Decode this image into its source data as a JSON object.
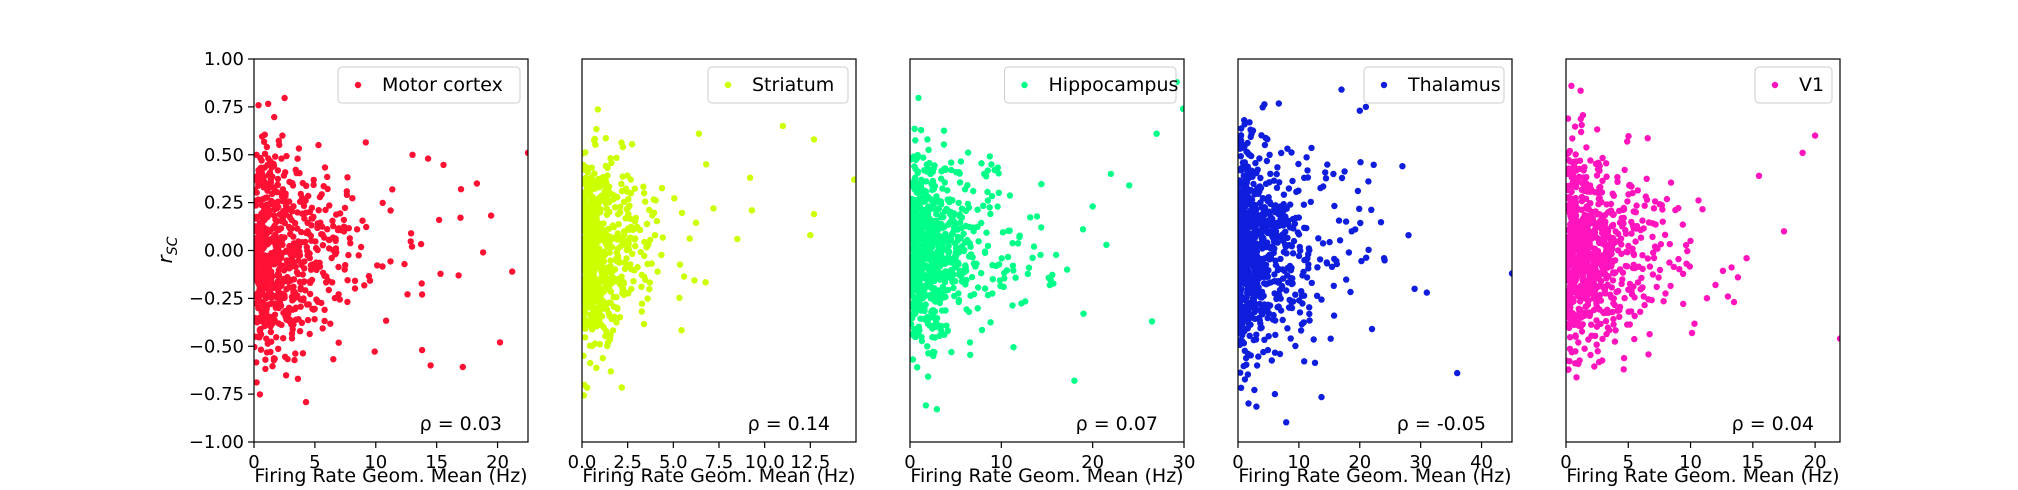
{
  "chart_data": {
    "type": "scatter",
    "ylabel": "r_SC",
    "ylim": [
      -1.0,
      1.0
    ],
    "yticks": [
      -1.0,
      -0.75,
      -0.5,
      -0.25,
      0.0,
      0.25,
      0.5,
      0.75,
      1.0
    ],
    "ytick_labels": [
      "−1.00",
      "−0.75",
      "−0.50",
      "−0.25",
      "0.00",
      "0.25",
      "0.50",
      "0.75",
      "1.00"
    ],
    "legend_position": "top-right",
    "panels": [
      {
        "name": "Motor cortex",
        "color": "#ff1133",
        "xlabel": "Firing Rate Geom. Mean (Hz)",
        "xlim": [
          0,
          22.5
        ],
        "xticks": [
          0,
          5,
          10,
          15,
          20
        ],
        "xtick_labels": [
          "0",
          "5",
          "10",
          "15",
          "20"
        ],
        "annotation": "ρ = 0.03",
        "n_points": 700,
        "x_scale": 2.8,
        "y_sd": 0.28,
        "outliers": [
          [
            22.5,
            0.51
          ],
          [
            21.2,
            -0.11
          ],
          [
            20.2,
            -0.48
          ],
          [
            18.3,
            0.35
          ],
          [
            17.0,
            0.32
          ],
          [
            16.8,
            -0.13
          ],
          [
            14.3,
            0.48
          ],
          [
            14.5,
            -0.6
          ],
          [
            13.8,
            -0.52
          ],
          [
            15.2,
            0.16
          ],
          [
            13.8,
            -0.23
          ],
          [
            12.9,
            0.09
          ]
        ]
      },
      {
        "name": "Striatum",
        "color": "#ccff00",
        "xlabel": "Firing Rate Geom. Mean (Hz)",
        "xlim": [
          0,
          15
        ],
        "xticks": [
          0,
          2.5,
          5,
          7.5,
          10,
          12.5
        ],
        "xtick_labels": [
          "0.0",
          "2.5",
          "5.0",
          "7.5",
          "10.0",
          "12.5"
        ],
        "annotation": "ρ = 0.14",
        "n_points": 700,
        "x_scale": 1.1,
        "y_sd": 0.24,
        "outliers": [
          [
            14.9,
            0.37
          ],
          [
            12.7,
            0.58
          ],
          [
            11.0,
            0.65
          ],
          [
            12.7,
            0.19
          ],
          [
            12.5,
            0.08
          ],
          [
            9.2,
            0.38
          ],
          [
            9.3,
            0.21
          ],
          [
            8.5,
            0.06
          ],
          [
            7.2,
            0.22
          ],
          [
            6.4,
            0.61
          ],
          [
            6.8,
            0.45
          ]
        ]
      },
      {
        "name": "Hippocampus",
        "color": "#00ff88",
        "xlabel": "Firing Rate Geom. Mean (Hz)",
        "xlim": [
          0,
          30
        ],
        "xticks": [
          0,
          10,
          20,
          30
        ],
        "xtick_labels": [
          "0",
          "10",
          "20",
          "30"
        ],
        "annotation": "ρ = 0.07",
        "n_points": 750,
        "x_scale": 3.2,
        "y_sd": 0.25,
        "outliers": [
          [
            29.9,
            0.74
          ],
          [
            29.2,
            0.88
          ],
          [
            27.0,
            0.61
          ],
          [
            26.5,
            -0.37
          ],
          [
            24.0,
            0.34
          ],
          [
            22.0,
            0.4
          ],
          [
            21.5,
            0.03
          ],
          [
            20.0,
            0.23
          ],
          [
            19.0,
            -0.33
          ],
          [
            18.0,
            -0.68
          ],
          [
            17.2,
            -0.1
          ]
        ]
      },
      {
        "name": "Thalamus",
        "color": "#0f1ddd",
        "xlabel": "Firing Rate Geom. Mean (Hz)",
        "xlim": [
          0,
          45
        ],
        "xticks": [
          0,
          10,
          20,
          30,
          40
        ],
        "xtick_labels": [
          "0",
          "10",
          "20",
          "30",
          "40"
        ],
        "annotation": "ρ = -0.05",
        "n_points": 800,
        "x_scale": 4.2,
        "y_sd": 0.29,
        "outliers": [
          [
            45.0,
            -0.12
          ],
          [
            36.0,
            -0.64
          ],
          [
            31.0,
            -0.22
          ],
          [
            29.0,
            -0.2
          ],
          [
            27.0,
            0.44
          ],
          [
            28.0,
            0.08
          ],
          [
            24.0,
            -0.04
          ],
          [
            22.0,
            -0.41
          ],
          [
            21.0,
            0.75
          ],
          [
            20.0,
            0.73
          ],
          [
            17.0,
            0.84
          ]
        ]
      },
      {
        "name": "V1",
        "color": "#ff14bd",
        "xlabel": "Firing Rate Geom. Mean (Hz)",
        "xlim": [
          0,
          22
        ],
        "xticks": [
          0,
          5,
          10,
          15,
          20
        ],
        "xtick_labels": [
          "0",
          "5",
          "10",
          "15",
          "20"
        ],
        "annotation": "ρ = 0.04",
        "n_points": 800,
        "x_scale": 2.6,
        "y_sd": 0.27,
        "outliers": [
          [
            22.0,
            -0.46
          ],
          [
            20.0,
            0.6
          ],
          [
            19.0,
            0.51
          ],
          [
            17.5,
            0.1
          ],
          [
            15.5,
            0.39
          ],
          [
            14.5,
            -0.04
          ],
          [
            13.8,
            -0.14
          ],
          [
            13.0,
            -0.24
          ],
          [
            12.0,
            -0.18
          ],
          [
            10.0,
            0.05
          ]
        ]
      }
    ]
  }
}
